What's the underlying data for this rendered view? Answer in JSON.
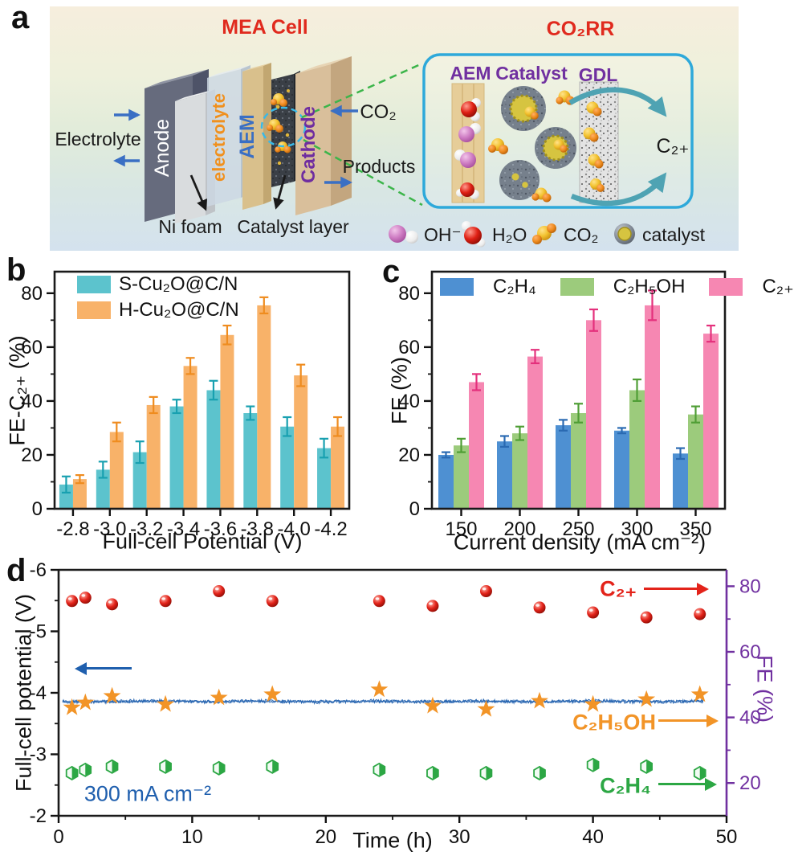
{
  "panel_labels": {
    "a": "a",
    "b": "b",
    "c": "c",
    "d": "d"
  },
  "panel_a": {
    "title_left": "MEA Cell",
    "title_right": "CO₂RR",
    "labels": {
      "flow": "Electrolyte",
      "anode": "Anode",
      "electrolyte": "electrolyte",
      "aem": "AEM",
      "cathode": "Cathode",
      "co2": "CO₂",
      "products": "Products",
      "ni_foam": "Ni foam",
      "catalyst_layer": "Catalyst layer"
    },
    "inset": {
      "aem": "AEM",
      "catalyst": "Catalyst",
      "gdl": "GDL",
      "product": "C₂₊"
    },
    "legend": [
      {
        "label": "OH⁻"
      },
      {
        "label": "H₂O"
      },
      {
        "label": "CO₂"
      },
      {
        "label": "catalyst"
      }
    ],
    "colors": {
      "title": "#e02a1e",
      "anode_text": "#ffffff",
      "electrolyte_text": "#f0901e",
      "aem_text": "#3a6fc4",
      "cathode_text": "#6f2da0",
      "inset_label": "#7030a0",
      "diagram_text": "#1a1a1a",
      "arrow_blue": "#3a6fc4"
    }
  },
  "chart_data": [
    {
      "panel": "b",
      "type": "bar",
      "xlabel": "Full-cell Potential (V)",
      "ylabel": "FE-C₂₊ (%)",
      "categories": [
        "-2.8",
        "-3.0",
        "-3.2",
        "-3.4",
        "-3.6",
        "-3.8",
        "-4.0",
        "-4.2"
      ],
      "ylim": [
        0,
        88
      ],
      "yticks": [
        0,
        20,
        40,
        60,
        80
      ],
      "legend_position": "top-left",
      "series": [
        {
          "name": "S-Cu₂O@C/N",
          "color": "#5cc3cd",
          "error_color": "#18a0b0",
          "values": [
            9,
            14.5,
            21,
            38,
            44,
            35.5,
            30.5,
            22.5
          ],
          "errors": [
            3,
            3,
            4,
            2.5,
            3.5,
            2.5,
            3.5,
            3.5
          ]
        },
        {
          "name": "H-Cu₂O@C/N",
          "color": "#f8b269",
          "error_color": "#ef8c1f",
          "values": [
            11,
            28.5,
            38.5,
            53,
            64.5,
            75.5,
            49.5,
            30.5
          ],
          "errors": [
            1.5,
            3.5,
            3,
            3,
            3.5,
            3,
            4,
            3.5
          ]
        }
      ]
    },
    {
      "panel": "c",
      "type": "bar",
      "xlabel": "Current density (mA cm⁻²)",
      "ylabel": "FE (%)",
      "categories": [
        "150",
        "200",
        "250",
        "300",
        "350"
      ],
      "ylim": [
        0,
        88
      ],
      "yticks": [
        0,
        20,
        40,
        60,
        80
      ],
      "legend_position": "top",
      "series": [
        {
          "name": "C₂H₄",
          "color": "#4e90d2",
          "error_color": "#2a6ab2",
          "values": [
            20,
            25,
            31,
            29,
            20.5
          ],
          "errors": [
            1,
            2,
            2,
            1,
            2
          ]
        },
        {
          "name": "C₂H₅OH",
          "color": "#9ccb7c",
          "error_color": "#4f9e35",
          "values": [
            23.5,
            28,
            35.5,
            44,
            35
          ],
          "errors": [
            2.5,
            2.5,
            3.5,
            4,
            3
          ]
        },
        {
          "name": "C₂₊",
          "color": "#f687b2",
          "error_color": "#e4307c",
          "values": [
            47,
            56.5,
            70,
            75.5,
            65
          ],
          "errors": [
            3,
            2.5,
            4,
            5.5,
            3
          ]
        }
      ]
    },
    {
      "panel": "d",
      "type": "scatter",
      "xlabel": "Time (h)",
      "ylabel_left": "Full-cell potential (V)",
      "ylabel_right": "FE (%)",
      "xlim": [
        0,
        50
      ],
      "xticks": [
        0,
        10,
        20,
        30,
        40,
        50
      ],
      "ylim_left": [
        -2,
        -6
      ],
      "yticks_left": [
        -2,
        -3,
        -4,
        -5,
        -6
      ],
      "ylim_right": [
        10,
        85
      ],
      "yticks_right": [
        20,
        40,
        60,
        80
      ],
      "right_axis_color": "#7030a0",
      "annotation": "300 mA cm⁻²",
      "potential_trace": {
        "color": "#1f5fae",
        "mean_value": -3.86,
        "x_start": 0.3,
        "x_end": 48.3
      },
      "times": [
        1,
        2,
        4,
        8,
        12,
        16,
        24,
        28,
        32,
        36,
        40,
        44,
        48
      ],
      "series": [
        {
          "name": "C₂₊",
          "marker": "sphere",
          "color": "#e3231a",
          "axis": "right",
          "values": [
            75.5,
            76.5,
            74.5,
            75.5,
            78.5,
            75.5,
            75.5,
            74,
            78.5,
            73.5,
            72,
            70.5,
            71.5
          ]
        },
        {
          "name": "C₂H₅OH",
          "marker": "star",
          "color": "#f29427",
          "axis": "right",
          "values": [
            43,
            44.5,
            46.5,
            44,
            46,
            47,
            48.5,
            43.5,
            42.5,
            45,
            44,
            45.5,
            47
          ]
        },
        {
          "name": "C₂H₄",
          "marker": "half-hexagon",
          "color": "#2ca744",
          "axis": "right",
          "values": [
            23,
            24,
            25,
            25,
            24.5,
            25,
            24,
            23,
            23,
            23,
            25.5,
            25,
            23
          ]
        }
      ]
    }
  ]
}
